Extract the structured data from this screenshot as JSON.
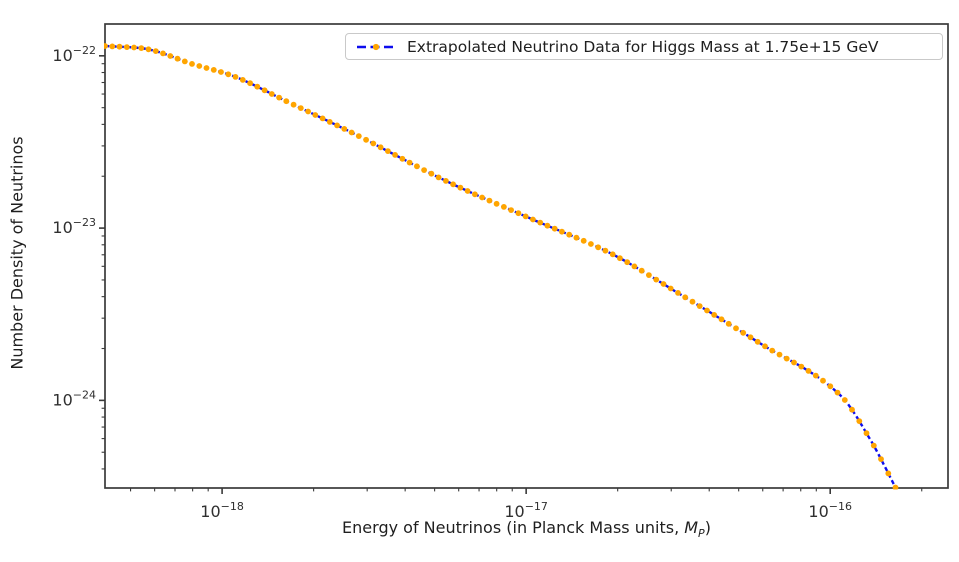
{
  "chart_data": {
    "type": "line",
    "title": "",
    "xlabel": {
      "prefix": "Energy of Neutrinos (in Planck Mass units, ",
      "math": "M",
      "math_sub": "P",
      "suffix": ")"
    },
    "ylabel": "Number Density of Neutrinos",
    "x_scale": "log",
    "y_scale": "log",
    "xlim": [
      4.12e-19,
      2.44e-16
    ],
    "ylim": [
      3.1e-25,
      1.53e-22
    ],
    "x_major_tick_exponents": [
      -18,
      -17,
      -16
    ],
    "y_major_tick_exponents": [
      -22,
      -23,
      -24
    ],
    "tick_base": "10",
    "grid": false,
    "legend": {
      "position": "upper right",
      "entries": [
        {
          "label": "Extrapolated Neutrino Data for Higgs Mass at 1.75e+15 GeV",
          "line_color": "#0d0dee",
          "line_style": "dashed",
          "marker": "circle",
          "marker_color": "#ffa500"
        }
      ]
    },
    "series": [
      {
        "name": "Extrapolated Neutrino Data for Higgs Mass at 1.75e+15 GeV",
        "line_color": "#0d0dee",
        "line_style": "dashed",
        "marker_color": "#ffa500",
        "n_markers": 110,
        "points": [
          {
            "x": 4.12e-19,
            "y": 1.14e-22
          },
          {
            "x": 5.37e-19,
            "y": 1.11e-22
          },
          {
            "x": 8.15e-19,
            "y": 8.87e-23
          },
          {
            "x": 1.06e-18,
            "y": 7.76e-23
          },
          {
            "x": 1.67e-18,
            "y": 5.33e-23
          },
          {
            "x": 2.64e-18,
            "y": 3.62e-23
          },
          {
            "x": 5.62e-18,
            "y": 1.83e-23
          },
          {
            "x": 1.03e-17,
            "y": 1.14e-23
          },
          {
            "x": 1.89e-17,
            "y": 7.16e-24
          },
          {
            "x": 3.21e-17,
            "y": 4.13e-24
          },
          {
            "x": 5.89e-17,
            "y": 2.14e-24
          },
          {
            "x": 1.08e-16,
            "y": 1.07e-24
          },
          {
            "x": 1.36e-16,
            "y": 5.85e-25
          },
          {
            "x": 1.64e-16,
            "y": 3.12e-25
          }
        ]
      }
    ],
    "style": {
      "spine_color": "#3a3a3a",
      "tick_color": "#3a3a3a",
      "tick_label_color": "#2f2f2f",
      "background": "#ffffff"
    }
  }
}
